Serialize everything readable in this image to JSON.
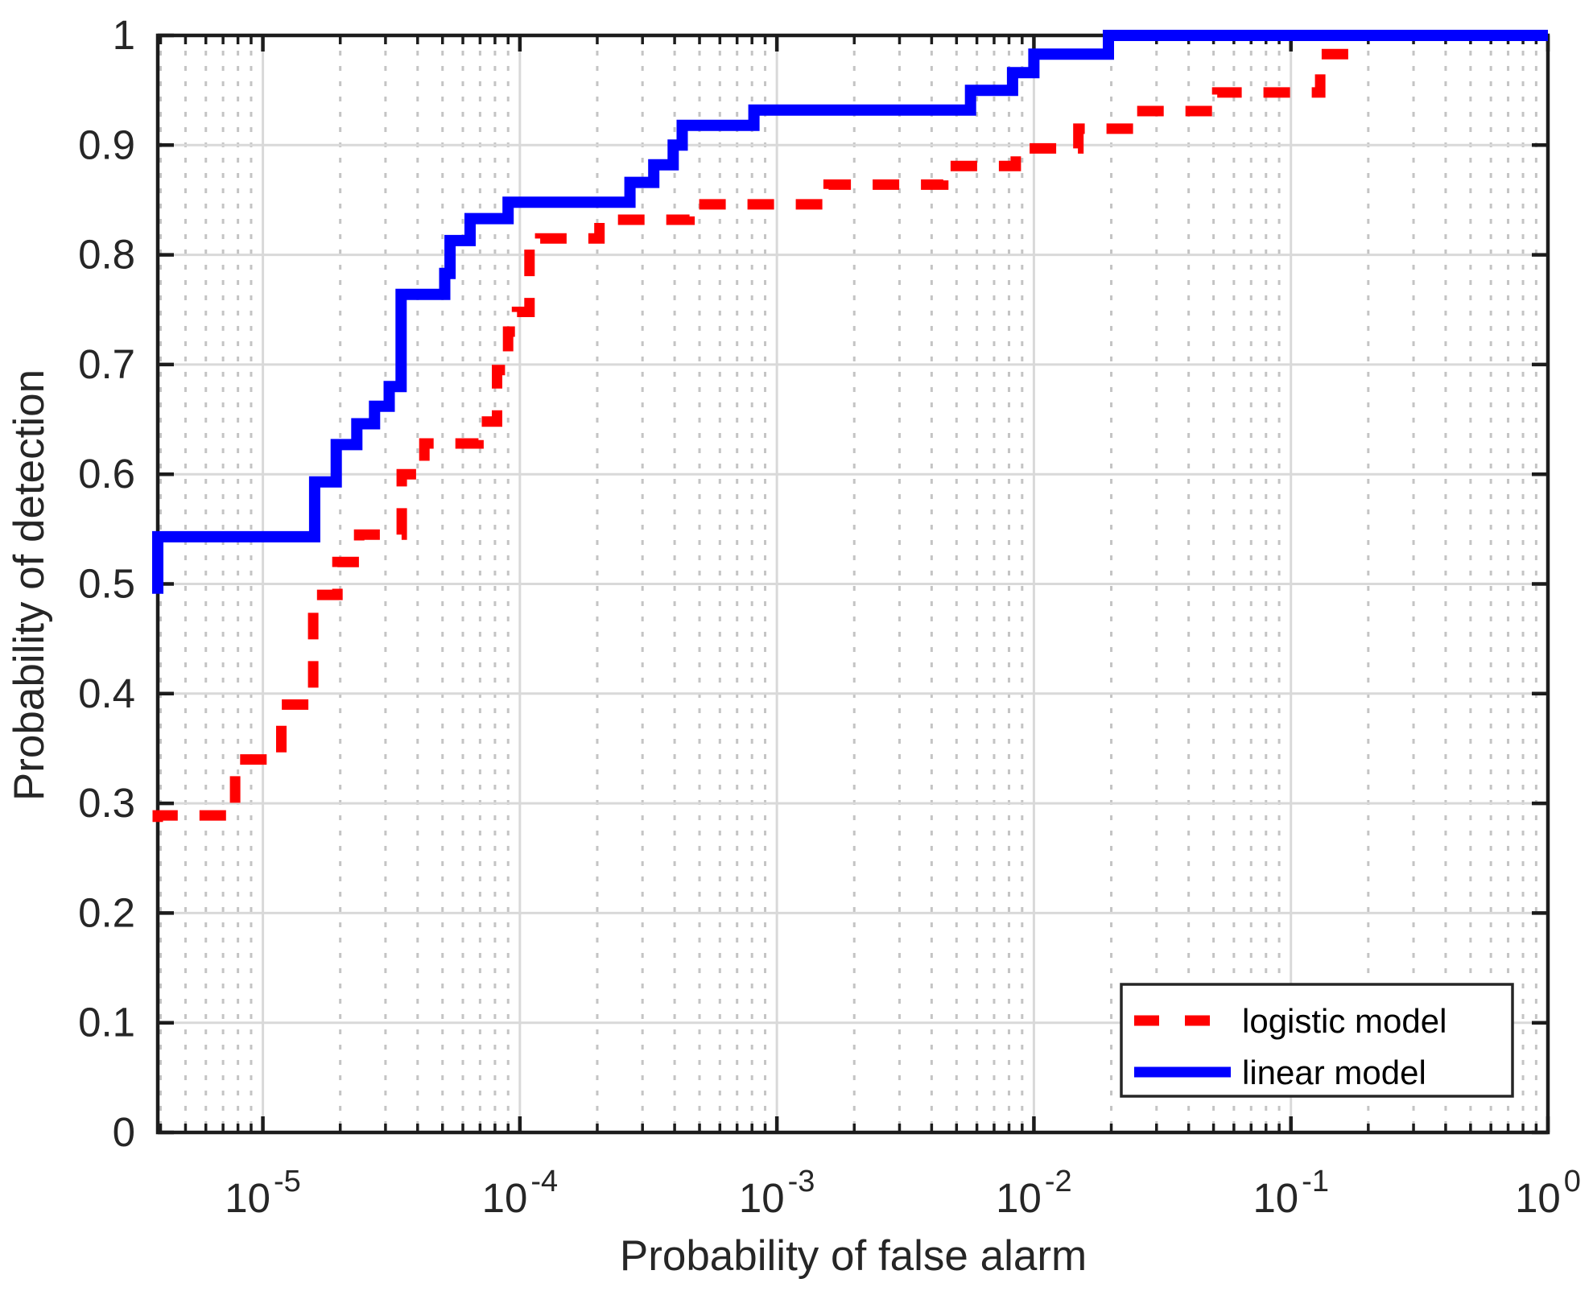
{
  "figure": {
    "background": "#ffffff",
    "axis_color": "#1c1c1c",
    "major_grid_color": "#d9d9d9",
    "minor_grid_color": "#c4c4c4",
    "tick_label_color": "#262626"
  },
  "chart_data": {
    "type": "line",
    "subtype": "roc-step-curves",
    "title": "",
    "xlabel": "Probability of false alarm",
    "ylabel": "Probability of detection",
    "xscale": "log",
    "yscale": "linear",
    "xlim": [
      3.9e-06,
      1
    ],
    "ylim": [
      0,
      1
    ],
    "grid": {
      "major": true,
      "minor_x_dotted": true
    },
    "x_major_ticks": [
      1e-05,
      0.0001,
      0.001,
      0.01,
      0.1,
      1
    ],
    "x_tick_labels": [
      {
        "base": "10",
        "exp": "-5"
      },
      {
        "base": "10",
        "exp": "-4"
      },
      {
        "base": "10",
        "exp": "-3"
      },
      {
        "base": "10",
        "exp": "-2"
      },
      {
        "base": "10",
        "exp": "-1"
      },
      {
        "base": "10",
        "exp": "0"
      }
    ],
    "y_ticks": [
      0,
      0.1,
      0.2,
      0.3,
      0.4,
      0.5,
      0.6,
      0.7,
      0.8,
      0.9,
      1
    ],
    "y_tick_labels": [
      "0",
      "0.1",
      "0.2",
      "0.3",
      "0.4",
      "0.5",
      "0.6",
      "0.7",
      "0.8",
      "0.9",
      "1"
    ],
    "legend": {
      "position": "southeast",
      "entries": [
        "logistic model",
        "linear model"
      ]
    },
    "series": [
      {
        "name": "logistic model",
        "color": "#ff0000",
        "line_style": "dashed",
        "line_width": 13,
        "points": [
          [
            3.9e-06,
            0.283
          ],
          [
            3.9e-06,
            0.289
          ],
          [
            7.8e-06,
            0.289
          ],
          [
            7.8e-06,
            0.34
          ],
          [
            1.18e-05,
            0.34
          ],
          [
            1.18e-05,
            0.39
          ],
          [
            1.57e-05,
            0.39
          ],
          [
            1.57e-05,
            0.49
          ],
          [
            1.95e-05,
            0.49
          ],
          [
            1.95e-05,
            0.52
          ],
          [
            2.37e-05,
            0.52
          ],
          [
            2.37e-05,
            0.545
          ],
          [
            3.47e-05,
            0.545
          ],
          [
            3.47e-05,
            0.6
          ],
          [
            4.25e-05,
            0.6
          ],
          [
            4.25e-05,
            0.628
          ],
          [
            6.9e-05,
            0.628
          ],
          [
            6.9e-05,
            0.648
          ],
          [
            8.15e-05,
            0.648
          ],
          [
            8.15e-05,
            0.695
          ],
          [
            9e-05,
            0.695
          ],
          [
            9e-05,
            0.73
          ],
          [
            9.75e-05,
            0.73
          ],
          [
            9.75e-05,
            0.748
          ],
          [
            0.000109,
            0.748
          ],
          [
            0.000109,
            0.8
          ],
          [
            0.00012,
            0.8
          ],
          [
            0.00012,
            0.815
          ],
          [
            0.000204,
            0.815
          ],
          [
            0.000204,
            0.832
          ],
          [
            0.000457,
            0.832
          ],
          [
            0.000457,
            0.846
          ],
          [
            0.00159,
            0.846
          ],
          [
            0.00159,
            0.864
          ],
          [
            0.00444,
            0.864
          ],
          [
            0.00444,
            0.881
          ],
          [
            0.0085,
            0.881
          ],
          [
            0.0085,
            0.897
          ],
          [
            0.0149,
            0.897
          ],
          [
            0.0149,
            0.915
          ],
          [
            0.0244,
            0.915
          ],
          [
            0.0244,
            0.931
          ],
          [
            0.0517,
            0.931
          ],
          [
            0.0517,
            0.948
          ],
          [
            0.13,
            0.948
          ],
          [
            0.13,
            0.983
          ],
          [
            0.188,
            0.983
          ]
        ]
      },
      {
        "name": "linear model",
        "color": "#0000ff",
        "line_style": "solid",
        "line_width": 14,
        "points": [
          [
            3.9e-06,
            0.491
          ],
          [
            3.9e-06,
            0.543
          ],
          [
            1.59e-05,
            0.543
          ],
          [
            1.59e-05,
            0.593
          ],
          [
            1.93e-05,
            0.593
          ],
          [
            1.93e-05,
            0.627
          ],
          [
            2.32e-05,
            0.627
          ],
          [
            2.32e-05,
            0.646
          ],
          [
            2.72e-05,
            0.646
          ],
          [
            2.72e-05,
            0.662
          ],
          [
            3.1e-05,
            0.662
          ],
          [
            3.1e-05,
            0.68
          ],
          [
            3.45e-05,
            0.68
          ],
          [
            3.45e-05,
            0.764
          ],
          [
            5.1e-05,
            0.764
          ],
          [
            5.1e-05,
            0.783
          ],
          [
            5.35e-05,
            0.783
          ],
          [
            5.35e-05,
            0.813
          ],
          [
            6.4e-05,
            0.813
          ],
          [
            6.4e-05,
            0.833
          ],
          [
            9e-05,
            0.833
          ],
          [
            9e-05,
            0.848
          ],
          [
            0.000268,
            0.848
          ],
          [
            0.000268,
            0.866
          ],
          [
            0.000332,
            0.866
          ],
          [
            0.000332,
            0.882
          ],
          [
            0.000395,
            0.882
          ],
          [
            0.000395,
            0.9
          ],
          [
            0.000428,
            0.9
          ],
          [
            0.000428,
            0.918
          ],
          [
            0.000814,
            0.918
          ],
          [
            0.000814,
            0.932
          ],
          [
            0.00567,
            0.932
          ],
          [
            0.00567,
            0.95
          ],
          [
            0.00826,
            0.95
          ],
          [
            0.00826,
            0.966
          ],
          [
            0.01,
            0.966
          ],
          [
            0.01,
            0.983
          ],
          [
            0.0195,
            0.983
          ],
          [
            0.0195,
            1.0
          ],
          [
            1.0,
            1.0
          ]
        ]
      }
    ]
  }
}
